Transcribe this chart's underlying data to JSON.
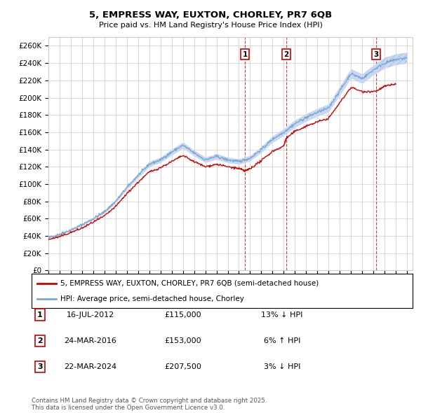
{
  "title": "5, EMPRESS WAY, EUXTON, CHORLEY, PR7 6QB",
  "subtitle": "Price paid vs. HM Land Registry's House Price Index (HPI)",
  "ylabel_ticks": [
    "£0",
    "£20K",
    "£40K",
    "£60K",
    "£80K",
    "£100K",
    "£120K",
    "£140K",
    "£160K",
    "£180K",
    "£200K",
    "£220K",
    "£240K",
    "£260K"
  ],
  "ytick_values": [
    0,
    20000,
    40000,
    60000,
    80000,
    100000,
    120000,
    140000,
    160000,
    180000,
    200000,
    220000,
    240000,
    260000
  ],
  "ylim": [
    0,
    270000
  ],
  "xlim_start": 1995.0,
  "xlim_end": 2027.5,
  "red_color": "#cc0000",
  "grid_color": "#cccccc",
  "bg_color": "#ffffff",
  "legend_entries": [
    "5, EMPRESS WAY, EUXTON, CHORLEY, PR7 6QB (semi-detached house)",
    "HPI: Average price, semi-detached house, Chorley"
  ],
  "transactions": [
    {
      "num": 1,
      "date": "16-JUL-2012",
      "price": "£115,000",
      "hpi": "13% ↓ HPI",
      "year": 2012.54
    },
    {
      "num": 2,
      "date": "24-MAR-2016",
      "price": "£153,000",
      "hpi": "6% ↑ HPI",
      "year": 2016.23
    },
    {
      "num": 3,
      "date": "22-MAR-2024",
      "price": "£207,500",
      "hpi": "3% ↓ HPI",
      "year": 2024.23
    }
  ],
  "footer": "Contains HM Land Registry data © Crown copyright and database right 2025.\nThis data is licensed under the Open Government Licence v3.0.",
  "hpi_blue_fill_color": "#c8d8f0",
  "hpi_blue_line_color": "#7aa8d2",
  "hpi_hatch_color": "#b0c8e8"
}
